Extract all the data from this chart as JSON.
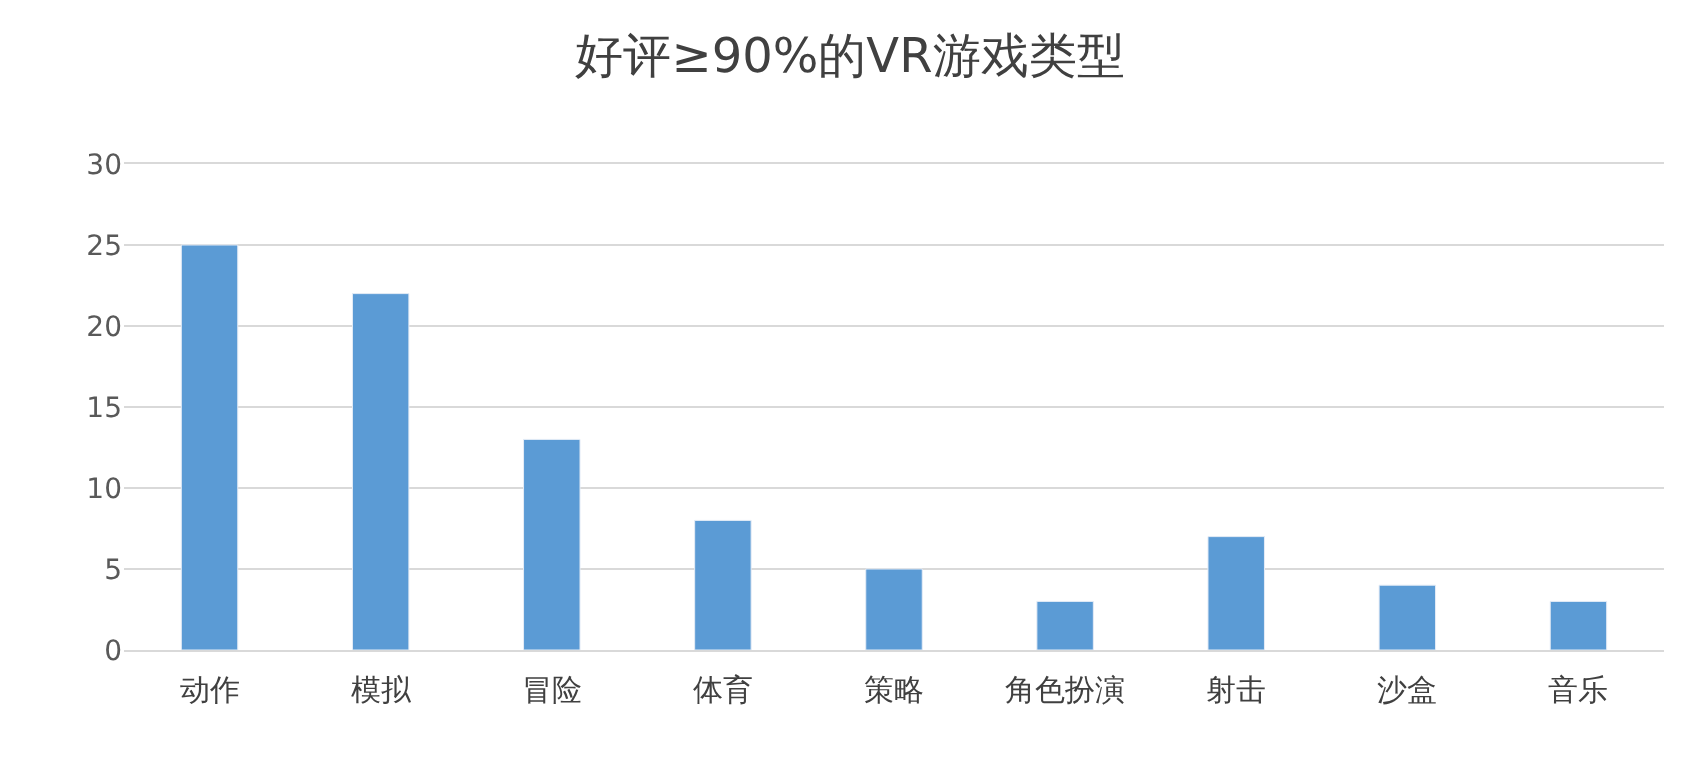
{
  "chart_data": {
    "type": "bar",
    "title": "好评≥90%的VR游戏类型",
    "categories": [
      "动作",
      "模拟",
      "冒险",
      "体育",
      "策略",
      "角色扮演",
      "射击",
      "沙盒",
      "音乐"
    ],
    "values": [
      25,
      22,
      13,
      8,
      5,
      3,
      7,
      4,
      3
    ],
    "color": "#5b9bd5",
    "ylim": [
      0,
      30
    ],
    "yticks": [
      0,
      5,
      10,
      15,
      20,
      25,
      30
    ],
    "grid": "y"
  }
}
